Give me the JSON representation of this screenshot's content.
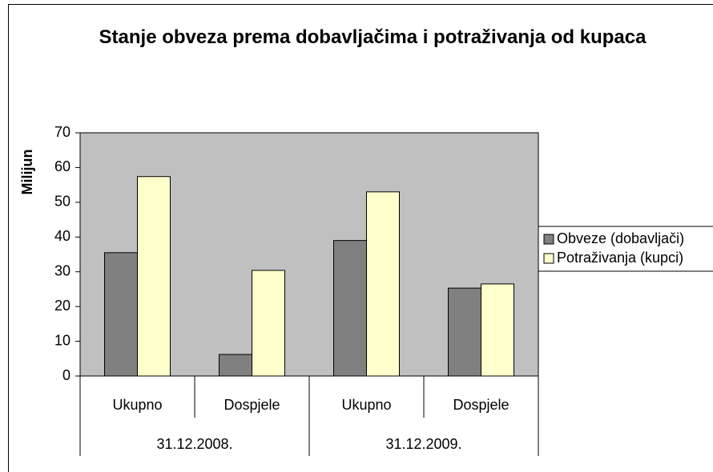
{
  "chart_data": {
    "type": "bar",
    "title": "Stanje obveza prema dobavljačima i potraživanja od kupaca",
    "y_label": "Milijun",
    "categories": [
      "Ukupno",
      "Dospjele",
      "Ukupno",
      "Dospjele"
    ],
    "groups": [
      "31.12.2008.",
      "31.12.2009."
    ],
    "series": [
      {
        "name": "Obveze (dobavljači)",
        "color": "#808080",
        "values": [
          35.5,
          6.2,
          39,
          25.3
        ]
      },
      {
        "name": "Potraživanja (kupci)",
        "color": "#ffffcc",
        "values": [
          57.4,
          30.4,
          53,
          26.5
        ]
      }
    ],
    "ylim": [
      0,
      70
    ],
    "yticks": [
      0,
      10,
      20,
      30,
      40,
      50,
      60,
      70
    ],
    "plot_background": "#c0c0c0",
    "grid": false,
    "legend": "right"
  }
}
